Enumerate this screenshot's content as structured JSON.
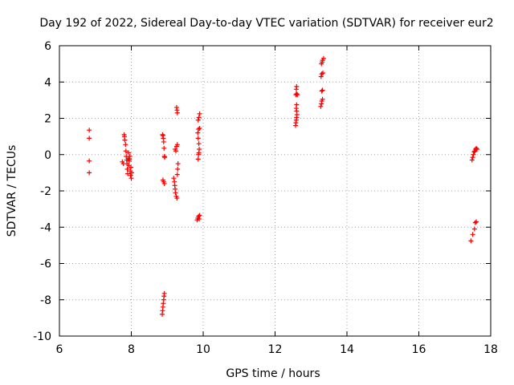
{
  "chart_data": {
    "type": "scatter",
    "title": "Day 192 of 2022, Sidereal Day-to-day VTEC variation (SDTVAR) for receiver eur2",
    "xlabel": "GPS time / hours",
    "ylabel": "SDTVAR / TECUs",
    "xlim": [
      6,
      18
    ],
    "ylim": [
      -10,
      6
    ],
    "xticks": [
      "6",
      "8",
      "10",
      "12",
      "14",
      "16",
      "18"
    ],
    "yticks": [
      "-10",
      "-8",
      "-6",
      "-4",
      "-2",
      "0",
      "2",
      "4",
      "6"
    ],
    "grid": true,
    "marker": "plus",
    "color": "#ff0000",
    "series": [
      {
        "points": [
          [
            6.83,
            1.35
          ],
          [
            6.83,
            0.9
          ],
          [
            6.83,
            -0.35
          ],
          [
            6.83,
            -1.0
          ],
          [
            7.75,
            -0.4
          ],
          [
            7.78,
            -0.5
          ],
          [
            7.8,
            1.1
          ],
          [
            7.81,
            1.0
          ],
          [
            7.82,
            0.8
          ],
          [
            7.84,
            0.55
          ],
          [
            7.85,
            0.2
          ],
          [
            7.86,
            -0.1
          ],
          [
            7.87,
            -0.3
          ],
          [
            7.88,
            -0.5
          ],
          [
            7.89,
            -0.8
          ],
          [
            7.9,
            -1.05
          ],
          [
            7.91,
            -0.2
          ],
          [
            7.92,
            0.1
          ],
          [
            7.93,
            -0.6
          ],
          [
            7.94,
            -0.35
          ],
          [
            7.95,
            -0.25
          ],
          [
            7.97,
            -0.9
          ],
          [
            7.98,
            -1.15
          ],
          [
            7.99,
            -0.7
          ],
          [
            8.0,
            -1.3
          ],
          [
            8.01,
            -1.0
          ],
          [
            7.96,
            -0.1
          ],
          [
            8.87,
            1.1
          ],
          [
            8.88,
            1.05
          ],
          [
            8.89,
            0.9
          ],
          [
            8.9,
            0.7
          ],
          [
            8.91,
            0.35
          ],
          [
            8.92,
            -0.1
          ],
          [
            8.93,
            -0.15
          ],
          [
            8.88,
            -1.4
          ],
          [
            8.9,
            -1.5
          ],
          [
            8.92,
            -1.6
          ],
          [
            8.86,
            -8.8
          ],
          [
            8.87,
            -8.6
          ],
          [
            8.88,
            -8.4
          ],
          [
            8.89,
            -8.2
          ],
          [
            8.9,
            -8.0
          ],
          [
            8.91,
            -7.8
          ],
          [
            8.92,
            -7.65
          ],
          [
            9.18,
            -1.3
          ],
          [
            9.2,
            -1.5
          ],
          [
            9.21,
            -1.7
          ],
          [
            9.22,
            -1.9
          ],
          [
            9.23,
            -2.1
          ],
          [
            9.25,
            -2.3
          ],
          [
            9.27,
            -2.4
          ],
          [
            9.28,
            -1.1
          ],
          [
            9.29,
            -0.8
          ],
          [
            9.3,
            -0.5
          ],
          [
            9.22,
            0.3
          ],
          [
            9.24,
            0.2
          ],
          [
            9.26,
            0.45
          ],
          [
            9.28,
            0.55
          ],
          [
            9.26,
            2.6
          ],
          [
            9.27,
            2.45
          ],
          [
            9.28,
            2.3
          ],
          [
            9.83,
            -3.6
          ],
          [
            9.85,
            -3.5
          ],
          [
            9.87,
            -3.4
          ],
          [
            9.89,
            -3.55
          ],
          [
            9.9,
            -3.35
          ],
          [
            9.86,
            -0.25
          ],
          [
            9.87,
            0.0
          ],
          [
            9.88,
            0.1
          ],
          [
            9.89,
            0.3
          ],
          [
            9.88,
            0.6
          ],
          [
            9.86,
            0.9
          ],
          [
            9.85,
            1.2
          ],
          [
            9.87,
            1.4
          ],
          [
            9.9,
            1.45
          ],
          [
            9.86,
            1.9
          ],
          [
            9.88,
            2.05
          ],
          [
            9.9,
            2.25
          ],
          [
            12.57,
            1.6
          ],
          [
            12.58,
            1.75
          ],
          [
            12.59,
            1.9
          ],
          [
            12.6,
            2.05
          ],
          [
            12.61,
            2.2
          ],
          [
            12.6,
            2.4
          ],
          [
            12.59,
            2.55
          ],
          [
            12.6,
            2.75
          ],
          [
            12.58,
            3.3
          ],
          [
            12.6,
            3.35
          ],
          [
            12.62,
            3.3
          ],
          [
            12.59,
            3.6
          ],
          [
            12.6,
            3.75
          ],
          [
            13.27,
            2.65
          ],
          [
            13.29,
            2.8
          ],
          [
            13.3,
            2.95
          ],
          [
            13.32,
            3.05
          ],
          [
            13.3,
            3.5
          ],
          [
            13.32,
            3.55
          ],
          [
            13.28,
            4.3
          ],
          [
            13.3,
            4.45
          ],
          [
            13.33,
            4.5
          ],
          [
            13.29,
            5.0
          ],
          [
            13.31,
            5.1
          ],
          [
            13.32,
            5.2
          ],
          [
            13.35,
            5.3
          ],
          [
            17.45,
            -4.75
          ],
          [
            17.5,
            -4.4
          ],
          [
            17.55,
            -4.1
          ],
          [
            17.57,
            -3.75
          ],
          [
            17.6,
            -3.7
          ],
          [
            17.48,
            -0.3
          ],
          [
            17.5,
            -0.15
          ],
          [
            17.52,
            0.0
          ],
          [
            17.54,
            0.15
          ],
          [
            17.56,
            0.2
          ],
          [
            17.58,
            0.3
          ],
          [
            17.6,
            0.35
          ],
          [
            17.62,
            0.3
          ]
        ]
      }
    ]
  }
}
